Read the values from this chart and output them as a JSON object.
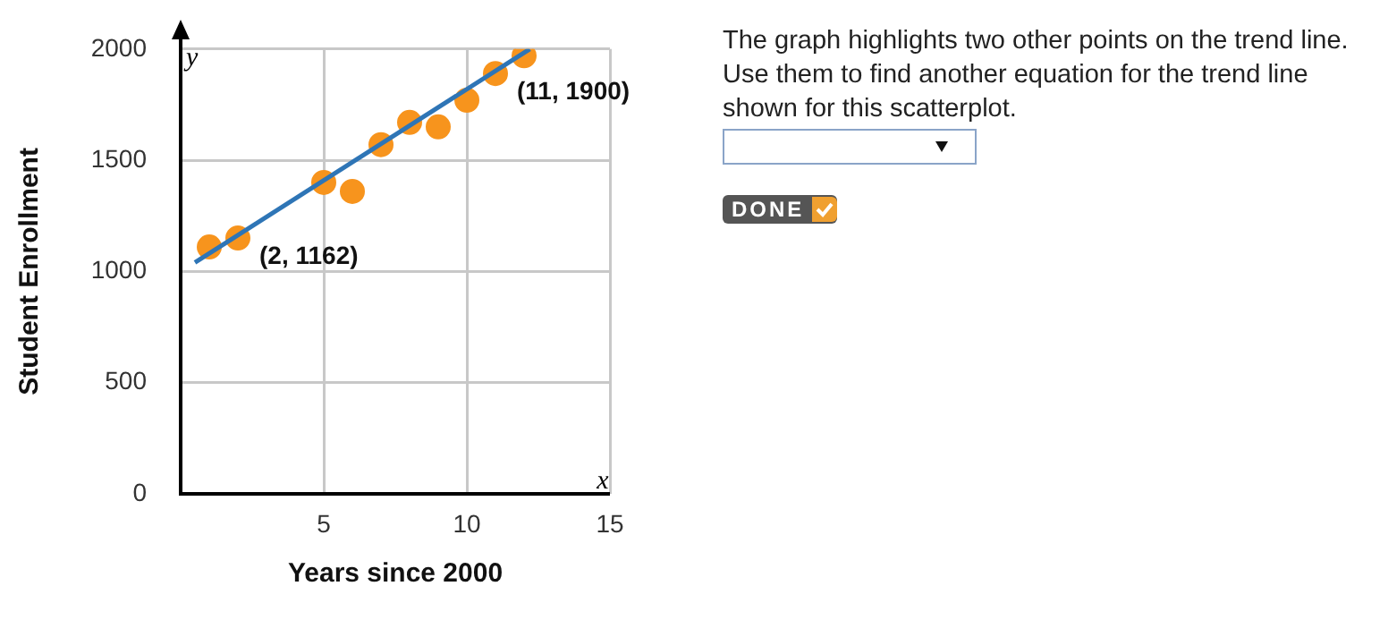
{
  "chart_data": {
    "type": "scatter",
    "xlabel": "Years since 2000",
    "ylabel": "Student Enrollment",
    "xlim": [
      0,
      15
    ],
    "xticks": [
      5,
      10,
      15
    ],
    "ylim": [
      0,
      2000
    ],
    "yticks": [
      0,
      500,
      1000,
      1500,
      2000
    ],
    "grid": true,
    "legend": false,
    "marker": "circle",
    "series": [
      {
        "color": "#f7941d",
        "x": [
          1,
          2,
          5,
          6,
          7,
          8,
          9,
          10,
          11,
          12
        ],
        "values": [
          1110,
          1150,
          1400,
          1360,
          1570,
          1670,
          1650,
          1770,
          1890,
          1970
        ]
      },
      {
        "type": "line",
        "color": "#2e75b6",
        "marker": "none",
        "x": [
          0.5,
          12.2
        ],
        "values": [
          1040,
          2000
        ]
      }
    ],
    "annotations": [
      "x",
      "y",
      "The graph highlights two other points on the trend line. Use them to find another equation for the trend line shown for this scatterplot.",
      "DONE",
      {
        "text": "(2, 1162)",
        "x": 2,
        "y": 1162
      },
      {
        "text": "(11, 1900)",
        "x": 11,
        "y": 1900
      }
    ]
  }
}
